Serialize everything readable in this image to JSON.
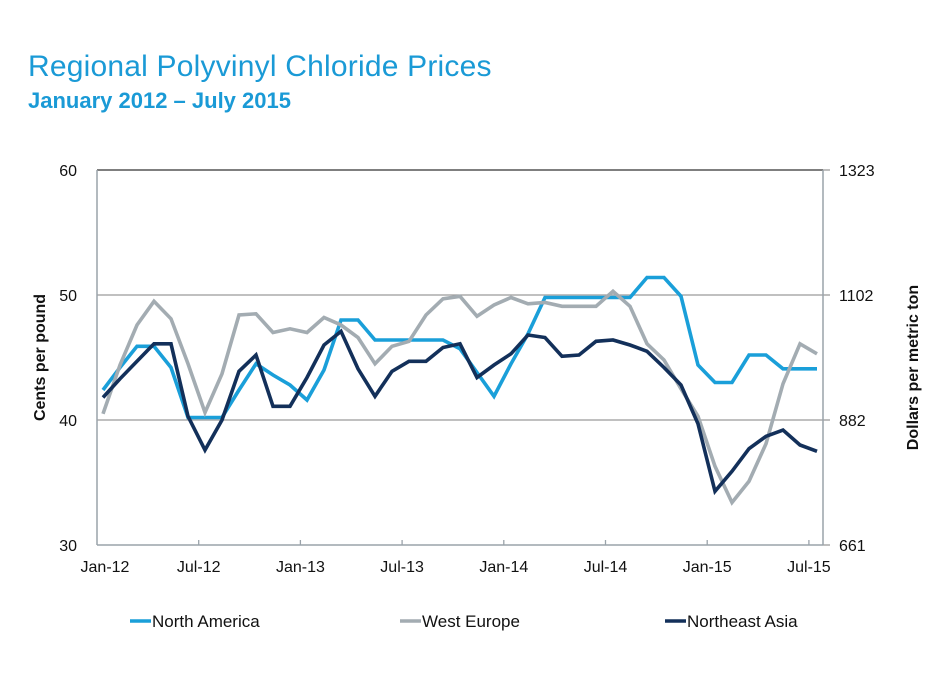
{
  "chart_data": {
    "type": "line",
    "title": "Regional Polyvinyl Chloride Prices",
    "subtitle": "January 2012 – July 2015",
    "xlabel": "",
    "ylabel": "Cents per pound",
    "y2label": "Dollars per metric ton",
    "ylim": [
      30,
      60
    ],
    "y2lim": [
      661,
      1323
    ],
    "yticks": [
      "30",
      "40",
      "50",
      "60"
    ],
    "y2ticks": [
      "661",
      "882",
      "1102",
      "1323"
    ],
    "grid": true,
    "legend_position": "bottom",
    "x": [
      "Jan-12",
      "Feb-12",
      "Mar-12",
      "Apr-12",
      "May-12",
      "Jun-12",
      "Jul-12",
      "Aug-12",
      "Sep-12",
      "Oct-12",
      "Nov-12",
      "Dec-12",
      "Jan-13",
      "Feb-13",
      "Mar-13",
      "Apr-13",
      "May-13",
      "Jun-13",
      "Jul-13",
      "Aug-13",
      "Sep-13",
      "Oct-13",
      "Nov-13",
      "Dec-13",
      "Jan-14",
      "Feb-14",
      "Mar-14",
      "Apr-14",
      "May-14",
      "Jun-14",
      "Jul-14",
      "Aug-14",
      "Sep-14",
      "Oct-14",
      "Nov-14",
      "Dec-14",
      "Jan-15",
      "Feb-15",
      "Mar-15",
      "Apr-15",
      "May-15",
      "Jun-15",
      "Jul-15"
    ],
    "xtick_labels": [
      "Jan-12",
      "Jul-12",
      "Jan-13",
      "Jul-13",
      "Jan-14",
      "Jul-14",
      "Jan-15",
      "Jul-15"
    ],
    "series": [
      {
        "name": "North America",
        "color": "#1a9fd9",
        "values": [
          42.4,
          44.2,
          45.9,
          45.9,
          44.2,
          40.2,
          40.2,
          40.2,
          42.4,
          44.5,
          43.6,
          42.8,
          41.6,
          44.0,
          48.0,
          48.0,
          46.4,
          46.4,
          46.4,
          46.4,
          46.4,
          45.7,
          43.8,
          41.9,
          44.5,
          46.9,
          49.8,
          49.8,
          49.8,
          49.8,
          49.8,
          49.8,
          51.4,
          51.4,
          49.9,
          44.4,
          43.0,
          43.0,
          45.2,
          45.2,
          44.1,
          44.1,
          44.1
        ]
      },
      {
        "name": "West Europe",
        "color": "#a3acb2",
        "values": [
          40.5,
          44.4,
          47.6,
          49.5,
          48.1,
          44.5,
          40.6,
          43.7,
          48.4,
          48.5,
          47.0,
          47.3,
          47.0,
          48.2,
          47.6,
          46.6,
          44.5,
          45.9,
          46.3,
          48.4,
          49.7,
          49.9,
          48.3,
          49.2,
          49.8,
          49.3,
          49.4,
          49.1,
          49.1,
          49.1,
          50.3,
          49.1,
          46.1,
          44.8,
          42.5,
          40.3,
          36.3,
          33.4,
          35.1,
          38.1,
          42.9,
          46.1,
          45.3
        ]
      },
      {
        "name": "Northeast Asia",
        "color": "#13305a",
        "values": [
          41.8,
          43.3,
          44.7,
          46.1,
          46.1,
          40.3,
          37.6,
          40.0,
          43.9,
          45.2,
          41.1,
          41.1,
          43.4,
          46.0,
          47.1,
          44.1,
          41.9,
          43.9,
          44.7,
          44.7,
          45.8,
          46.1,
          43.4,
          44.4,
          45.3,
          46.8,
          46.6,
          45.1,
          45.2,
          46.3,
          46.4,
          46.0,
          45.5,
          44.2,
          42.8,
          39.7,
          34.3,
          35.9,
          37.7,
          38.7,
          39.2,
          38.0,
          37.5
        ]
      }
    ]
  }
}
